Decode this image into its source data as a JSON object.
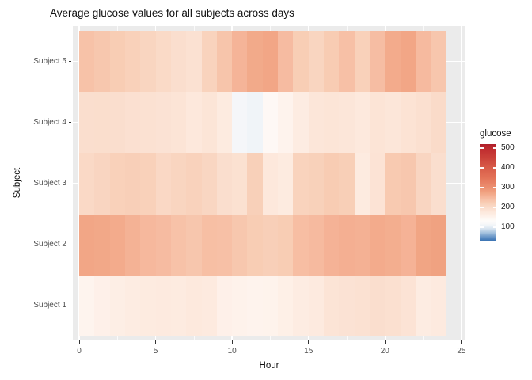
{
  "title": "Average glucose values for all subjects across days",
  "axes": {
    "x_label": "Hour",
    "y_label": "Subject"
  },
  "legend": {
    "title": "glucose"
  },
  "colors": {
    "panel_background": "#EBEBEB",
    "gridline": "#FFFFFF",
    "tick_mark": "#333333",
    "tick_label": "#4D4D4D",
    "title_text": "#111111"
  },
  "chart_data": {
    "type": "heatmap",
    "title": "Average glucose values for all subjects across days",
    "xlabel": "Hour",
    "ylabel": "Subject",
    "x_hours": [
      0,
      1,
      2,
      3,
      4,
      5,
      6,
      7,
      8,
      9,
      10,
      11,
      12,
      13,
      14,
      15,
      16,
      17,
      18,
      19,
      20,
      21,
      22,
      23
    ],
    "x_ticks": [
      0,
      5,
      10,
      15,
      20,
      25
    ],
    "x_minor_ticks": [
      2.5,
      7.5,
      12.5,
      17.5,
      22.5
    ],
    "xlim": [
      -0.41,
      25.26
    ],
    "grid": true,
    "rows": [
      {
        "name": "Subject 5",
        "values": [
          238,
          232,
          225,
          218,
          212,
          204,
          196,
          190,
          215,
          235,
          255,
          268,
          272,
          246,
          224,
          212,
          226,
          240,
          218,
          244,
          266,
          272,
          248,
          233
        ]
      },
      {
        "name": "Subject 4",
        "values": [
          196,
          197,
          196,
          192,
          190,
          188,
          185,
          176,
          183,
          170,
          115,
          110,
          140,
          152,
          168,
          180,
          183,
          180,
          175,
          185,
          181,
          187,
          193,
          202
        ]
      },
      {
        "name": "Subject 3",
        "values": [
          205,
          211,
          218,
          221,
          218,
          206,
          212,
          216,
          210,
          196,
          191,
          220,
          176,
          171,
          215,
          219,
          226,
          222,
          171,
          186,
          228,
          232,
          211,
          196
        ]
      },
      {
        "name": "Subject 2",
        "values": [
          272,
          270,
          266,
          258,
          250,
          246,
          238,
          233,
          242,
          240,
          232,
          225,
          221,
          225,
          243,
          248,
          257,
          261,
          259,
          266,
          263,
          257,
          274,
          278
        ]
      },
      {
        "name": "Subject 1",
        "values": [
          150,
          158,
          163,
          168,
          170,
          172,
          170,
          175,
          172,
          158,
          155,
          152,
          153,
          160,
          168,
          172,
          185,
          188,
          190,
          196,
          193,
          186,
          168,
          172
        ]
      }
    ],
    "legend": {
      "title": "glucose",
      "ticks": [
        500,
        400,
        300,
        200,
        100
      ],
      "range": [
        32,
        520
      ],
      "position": "right"
    },
    "color_scale": {
      "type": "diverging-blue-white-red",
      "anchors": [
        [
          32,
          "#3B73B3"
        ],
        [
          50,
          "#6593C6"
        ],
        [
          70,
          "#9FBEDC"
        ],
        [
          90,
          "#D3E1EE"
        ],
        [
          105,
          "#EBF1F7"
        ],
        [
          118,
          "#F8F8F9"
        ],
        [
          132,
          "#FEFCFA"
        ],
        [
          150,
          "#FEF4EE"
        ],
        [
          175,
          "#FDE9DD"
        ],
        [
          200,
          "#FADCCB"
        ],
        [
          225,
          "#F8CDB4"
        ],
        [
          250,
          "#F6B89D"
        ],
        [
          275,
          "#F1A483"
        ],
        [
          300,
          "#EC9071"
        ],
        [
          350,
          "#E37257"
        ],
        [
          400,
          "#D85C49"
        ],
        [
          450,
          "#CB4139"
        ],
        [
          500,
          "#BE2A2E"
        ],
        [
          520,
          "#AF1F2A"
        ]
      ]
    }
  }
}
